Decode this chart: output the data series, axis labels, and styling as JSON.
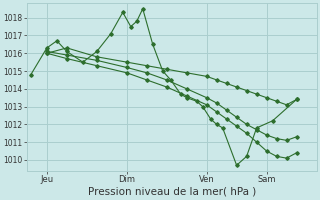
{
  "bg_color": "#cce8e8",
  "grid_color": "#aacece",
  "line_color": "#2d6e2d",
  "marker_color": "#2d6e2d",
  "xlabel": "Pression niveau de la mer( hPa )",
  "xlabel_fontsize": 7.5,
  "ytick_values": [
    1010,
    1011,
    1012,
    1013,
    1014,
    1015,
    1016,
    1017,
    1018
  ],
  "ylim": [
    1009.4,
    1018.8
  ],
  "xtick_labels": [
    "Jeu",
    "Dim",
    "Ven",
    "Sam"
  ],
  "xtick_positions": [
    1,
    5,
    9,
    12
  ],
  "vline_positions": [
    1,
    5,
    9,
    12
  ],
  "xlim": [
    0,
    14.5
  ],
  "series0_x": [
    0.2,
    1.0,
    1.5,
    2.0,
    2.8,
    3.5,
    4.2,
    4.8,
    5.2,
    5.5,
    5.8,
    6.3,
    6.8,
    7.2,
    7.7,
    8.0,
    8.5,
    8.8,
    9.2,
    9.5,
    9.8,
    10.5,
    11.0,
    11.5,
    12.3,
    13.5
  ],
  "series0_y": [
    1014.8,
    1016.3,
    1016.7,
    1016.1,
    1015.5,
    1016.1,
    1017.1,
    1018.3,
    1017.5,
    1017.8,
    1018.5,
    1016.5,
    1015.0,
    1014.5,
    1013.7,
    1013.5,
    1013.3,
    1013.0,
    1012.3,
    1012.0,
    1011.8,
    1009.7,
    1010.2,
    1011.8,
    1012.2,
    1013.4
  ],
  "series1_x": [
    1.0,
    2.0,
    3.5,
    5.0,
    6.0,
    7.0,
    8.0,
    9.0,
    9.5,
    10.0,
    10.5,
    11.0,
    11.5,
    12.0,
    12.5,
    13.0,
    13.5
  ],
  "series1_y": [
    1016.0,
    1016.3,
    1015.8,
    1015.5,
    1015.3,
    1015.1,
    1014.9,
    1014.7,
    1014.5,
    1014.3,
    1014.1,
    1013.9,
    1013.7,
    1013.5,
    1013.3,
    1013.1,
    1013.4
  ],
  "series2_x": [
    1.0,
    2.0,
    3.5,
    5.0,
    6.0,
    7.0,
    8.0,
    9.0,
    9.5,
    10.0,
    10.5,
    11.0,
    11.5,
    12.0,
    12.5,
    13.0,
    13.5
  ],
  "series2_y": [
    1016.1,
    1015.9,
    1015.6,
    1015.2,
    1014.9,
    1014.5,
    1014.0,
    1013.5,
    1013.2,
    1012.8,
    1012.4,
    1012.0,
    1011.7,
    1011.4,
    1011.2,
    1011.1,
    1011.3
  ],
  "series3_x": [
    1.0,
    2.0,
    3.5,
    5.0,
    6.0,
    7.0,
    8.0,
    9.0,
    9.5,
    10.0,
    10.5,
    11.0,
    11.5,
    12.0,
    12.5,
    13.0,
    13.5
  ],
  "series3_y": [
    1016.0,
    1015.7,
    1015.3,
    1014.9,
    1014.5,
    1014.1,
    1013.6,
    1013.1,
    1012.7,
    1012.3,
    1011.9,
    1011.5,
    1011.0,
    1010.5,
    1010.2,
    1010.1,
    1010.4
  ]
}
